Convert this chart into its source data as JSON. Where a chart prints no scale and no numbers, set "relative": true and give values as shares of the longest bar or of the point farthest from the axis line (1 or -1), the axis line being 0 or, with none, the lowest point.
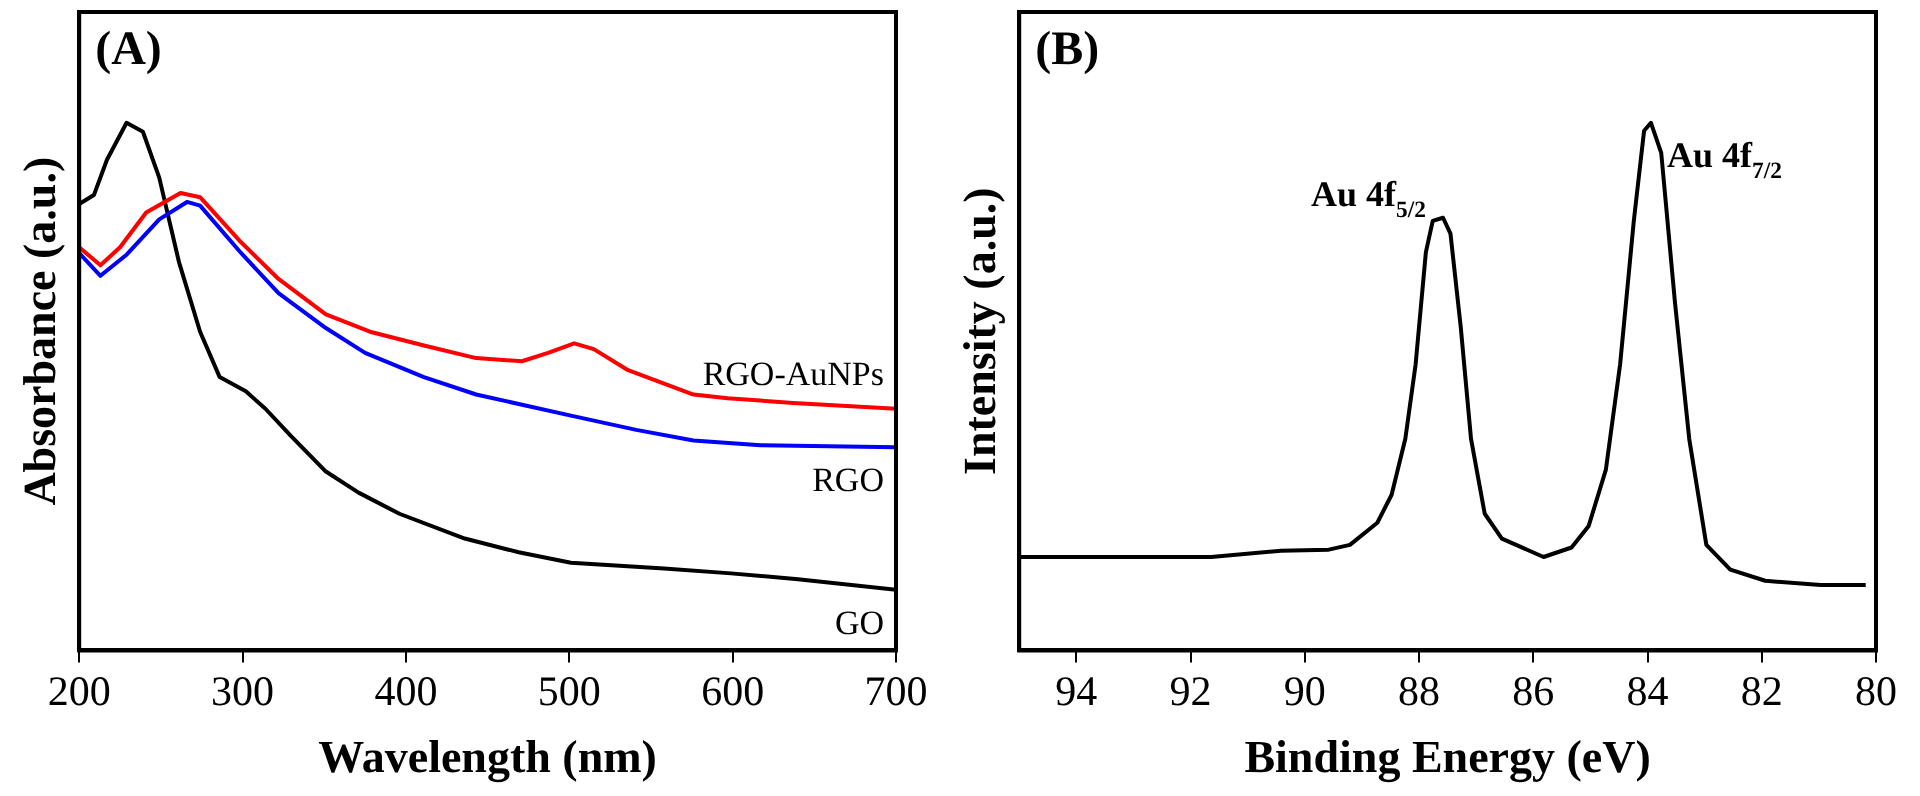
{
  "chart_data": [
    {
      "type": "line",
      "xlabel": "Wavelength (nm)",
      "ylabel": "Absorbance (a.u.)",
      "relative": true,
      "xlim": [
        200,
        700
      ],
      "xticks": [
        200,
        300,
        400,
        500,
        600,
        700
      ],
      "grid": false,
      "legend": false,
      "marker": "none",
      "line_style": "solid",
      "annotations": [
        "(A)"
      ],
      "series": [
        {
          "name": "RGO-AuNPs",
          "color": "#ff0000",
          "x": [
            200,
            213,
            225,
            241,
            262,
            274,
            298,
            322,
            351,
            378,
            411,
            443,
            471,
            487,
            503,
            515,
            536,
            576,
            597,
            637,
            700
          ],
          "values": [
            0.764,
            0.73,
            0.764,
            0.83,
            0.867,
            0.859,
            0.777,
            0.704,
            0.637,
            0.604,
            0.578,
            0.554,
            0.548,
            0.564,
            0.582,
            0.571,
            0.531,
            0.485,
            0.478,
            0.469,
            0.458
          ]
        },
        {
          "name": "RGO",
          "color": "#0000ff",
          "x": [
            200,
            213,
            229,
            249,
            266,
            274,
            298,
            322,
            351,
            375,
            411,
            443,
            501,
            541,
            576,
            617,
            700
          ],
          "values": [
            0.753,
            0.71,
            0.75,
            0.817,
            0.85,
            0.843,
            0.757,
            0.677,
            0.611,
            0.564,
            0.518,
            0.485,
            0.445,
            0.418,
            0.398,
            0.389,
            0.385
          ]
        },
        {
          "name": "GO",
          "color": "#000000",
          "x": [
            200,
            209,
            217,
            229,
            239,
            249,
            261,
            274,
            286,
            302,
            314,
            330,
            351,
            371,
            396,
            436,
            469,
            501,
            558,
            599,
            640,
            700
          ],
          "values": [
            0.846,
            0.863,
            0.93,
            1.0,
            0.983,
            0.896,
            0.737,
            0.604,
            0.518,
            0.491,
            0.458,
            0.405,
            0.339,
            0.299,
            0.259,
            0.212,
            0.186,
            0.166,
            0.155,
            0.146,
            0.135,
            0.115
          ]
        }
      ]
    },
    {
      "type": "line",
      "xlabel": "Binding Energy (eV)",
      "ylabel": "Intensity (a.u.)",
      "relative": true,
      "xlim": [
        95,
        80
      ],
      "xticks": [
        94,
        92,
        90,
        88,
        86,
        84,
        82,
        80
      ],
      "grid": false,
      "legend": false,
      "marker": "none",
      "line_style": "solid",
      "annotations": [
        "(B)",
        {
          "text": "Au 4f$_{5/2}$",
          "x": 87.6,
          "y": 0.82
        },
        {
          "text": "Au 4f$_{7/2}$",
          "x": 83.94,
          "y": 1.0
        }
      ],
      "series": [
        {
          "color": "#000000",
          "x": [
            94.97,
            93.45,
            91.64,
            90.42,
            89.58,
            89.21,
            88.73,
            88.48,
            88.24,
            88.06,
            87.88,
            87.76,
            87.58,
            87.45,
            87.27,
            87.09,
            86.85,
            86.55,
            85.82,
            85.33,
            85.03,
            84.73,
            84.48,
            84.24,
            84.06,
            83.94,
            83.76,
            83.52,
            83.27,
            82.97,
            82.55,
            81.94,
            80.97,
            80.18
          ],
          "values": [
            0.177,
            0.177,
            0.177,
            0.189,
            0.191,
            0.2,
            0.242,
            0.295,
            0.401,
            0.542,
            0.755,
            0.814,
            0.82,
            0.79,
            0.613,
            0.401,
            0.259,
            0.212,
            0.177,
            0.195,
            0.236,
            0.342,
            0.542,
            0.814,
            0.985,
            1.0,
            0.943,
            0.66,
            0.401,
            0.2,
            0.153,
            0.132,
            0.124,
            0.124
          ]
        }
      ]
    }
  ]
}
